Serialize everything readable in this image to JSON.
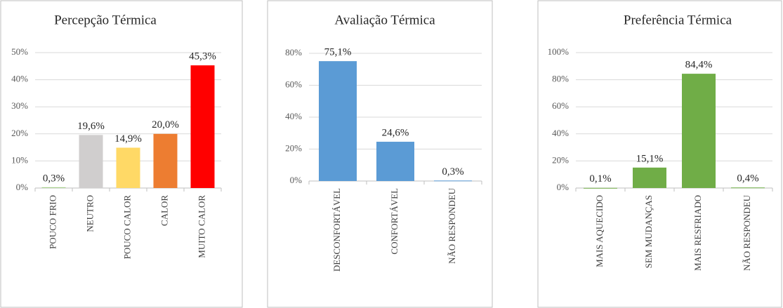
{
  "chart_data": [
    {
      "type": "bar",
      "title": "Percepção Térmica",
      "categories": [
        "POUCO FRIO",
        "NEUTRO",
        "POUCO CALOR",
        "CALOR",
        "MUITO CALOR"
      ],
      "values": [
        0.3,
        19.6,
        14.9,
        20.0,
        45.3
      ],
      "value_labels": [
        "0,3%",
        "19,6%",
        "14,9%",
        "20,0%",
        "45,3%"
      ],
      "colors": [
        "#a9d18e",
        "#d0cece",
        "#ffd966",
        "#ed7d31",
        "#ff0000"
      ],
      "ylim": [
        0,
        50
      ],
      "yticks": [
        {
          "value": 0,
          "label": "0%"
        },
        {
          "value": 10,
          "label": "10%"
        },
        {
          "value": 20,
          "label": "20%"
        },
        {
          "value": 30,
          "label": "30%"
        },
        {
          "value": 40,
          "label": "40%"
        },
        {
          "value": 50,
          "label": "50%"
        }
      ],
      "grid": true
    },
    {
      "type": "bar",
      "title": "Avaliação Térmica",
      "categories": [
        "DESCONFORTÁVEL",
        "CONFORTÁVEL",
        "NÃO RESPONDEU"
      ],
      "values": [
        75.1,
        24.6,
        0.3
      ],
      "value_labels": [
        "75,1%",
        "24,6%",
        "0,3%"
      ],
      "colors": [
        "#5b9bd5",
        "#5b9bd5",
        "#5b9bd5"
      ],
      "ylim": [
        0,
        80
      ],
      "yticks": [
        {
          "value": 0,
          "label": "0%"
        },
        {
          "value": 20,
          "label": "20%"
        },
        {
          "value": 40,
          "label": "40%"
        },
        {
          "value": 60,
          "label": "60%"
        },
        {
          "value": 80,
          "label": "80%"
        }
      ],
      "grid": true
    },
    {
      "type": "bar",
      "title": "Preferência Térmica",
      "categories": [
        "MAIS AQUECIDO",
        "SEM MUDANÇAS",
        "MAIS RESFRIADO",
        "NÃO RESPONDEU"
      ],
      "values": [
        0.1,
        15.1,
        84.4,
        0.4
      ],
      "value_labels": [
        "0,1%",
        "15,1%",
        "84,4%",
        "0,4%"
      ],
      "colors": [
        "#70ad47",
        "#70ad47",
        "#70ad47",
        "#70ad47"
      ],
      "ylim": [
        0,
        100
      ],
      "yticks": [
        {
          "value": 0,
          "label": "0%"
        },
        {
          "value": 20,
          "label": "20%"
        },
        {
          "value": 40,
          "label": "40%"
        },
        {
          "value": 60,
          "label": "60%"
        },
        {
          "value": 80,
          "label": "80%"
        },
        {
          "value": 100,
          "label": "100%"
        }
      ],
      "grid": true
    }
  ]
}
